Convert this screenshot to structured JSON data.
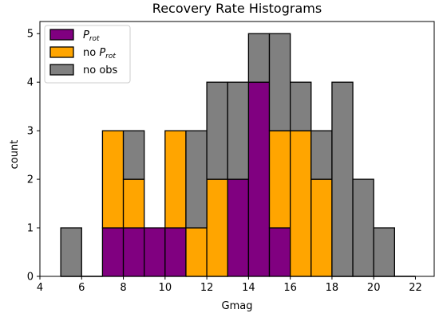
{
  "chart_data": {
    "type": "bar",
    "stacked": true,
    "title": "Recovery Rate Histograms",
    "xlabel": "Gmag",
    "ylabel": "count",
    "xlim": [
      4,
      22.9
    ],
    "ylim": [
      0,
      5.25
    ],
    "xticks": [
      4,
      6,
      8,
      10,
      12,
      14,
      16,
      18,
      20,
      22
    ],
    "yticks": [
      0,
      1,
      2,
      3,
      4,
      5
    ],
    "bin_edges": [
      5,
      6,
      7,
      8,
      9,
      10,
      11,
      12,
      13,
      14,
      15,
      16,
      17,
      18,
      19,
      20,
      21,
      22
    ],
    "legend_position": "top-left",
    "series": [
      {
        "name": "P_rot",
        "label_main": "P",
        "label_sub": "rot",
        "color": "#800080",
        "values": [
          0,
          0,
          1,
          1,
          1,
          1,
          0,
          0,
          2,
          4,
          1,
          0,
          0,
          0,
          0,
          0,
          0
        ]
      },
      {
        "name": "no P_rot",
        "label_main": "no P",
        "label_sub": "rot",
        "color": "#ffa500",
        "values": [
          0,
          0,
          2,
          1,
          0,
          2,
          1,
          2,
          0,
          0,
          2,
          3,
          2,
          0,
          0,
          0,
          0
        ]
      },
      {
        "name": "no obs",
        "label_main": "no obs",
        "label_sub": "",
        "color": "#808080",
        "values": [
          1,
          0,
          0,
          1,
          0,
          0,
          2,
          2,
          2,
          1,
          2,
          1,
          1,
          4,
          2,
          1,
          0
        ]
      }
    ]
  }
}
